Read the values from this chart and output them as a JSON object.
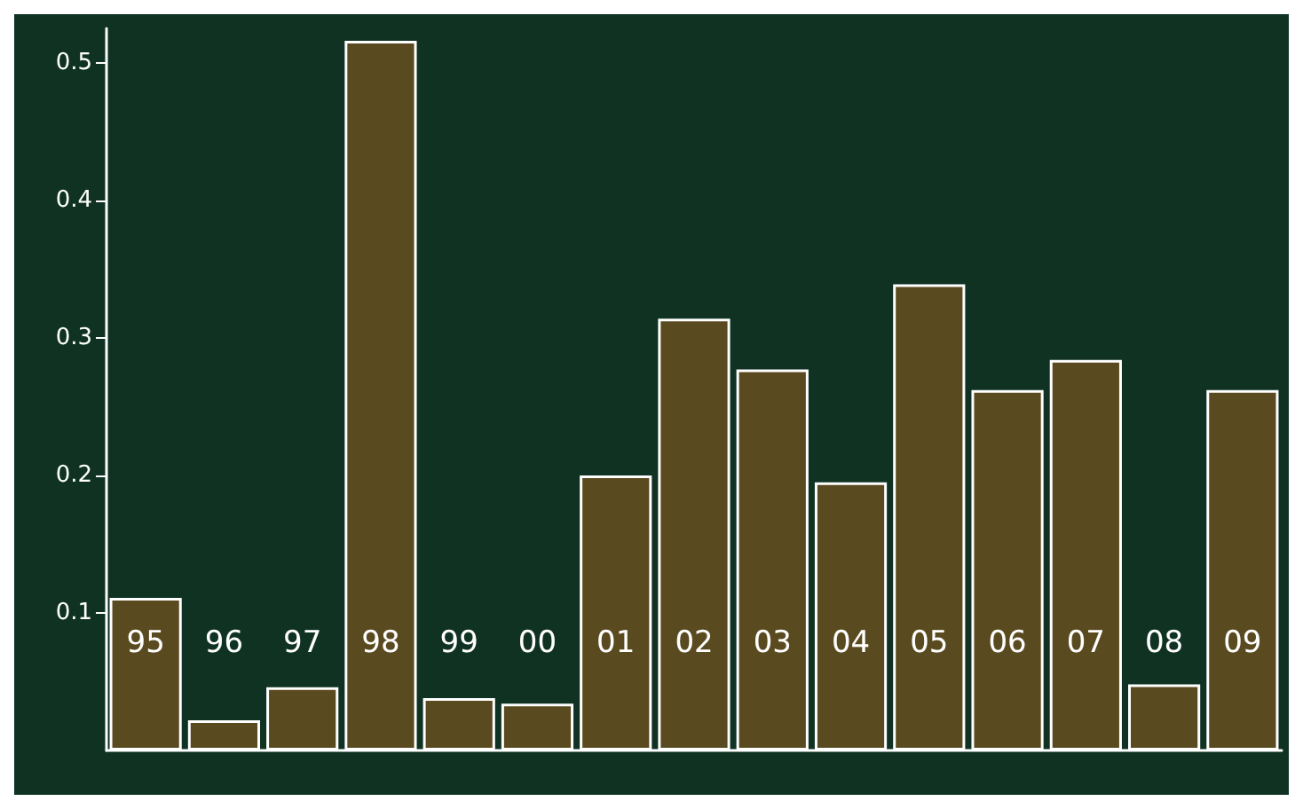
{
  "chart_data": {
    "type": "bar",
    "categories": [
      "95",
      "96",
      "97",
      "98",
      "99",
      "00",
      "01",
      "02",
      "03",
      "04",
      "05",
      "06",
      "07",
      "08",
      "09"
    ],
    "values": [
      0.111,
      0.022,
      0.046,
      0.516,
      0.038,
      0.034,
      0.2,
      0.314,
      0.277,
      0.195,
      0.339,
      0.262,
      0.284,
      0.048,
      0.262
    ],
    "color": "#5a4a1f",
    "ylim": [
      0,
      0.525
    ],
    "yticks": [
      0.1,
      0.2,
      0.3,
      0.4,
      0.5
    ]
  }
}
